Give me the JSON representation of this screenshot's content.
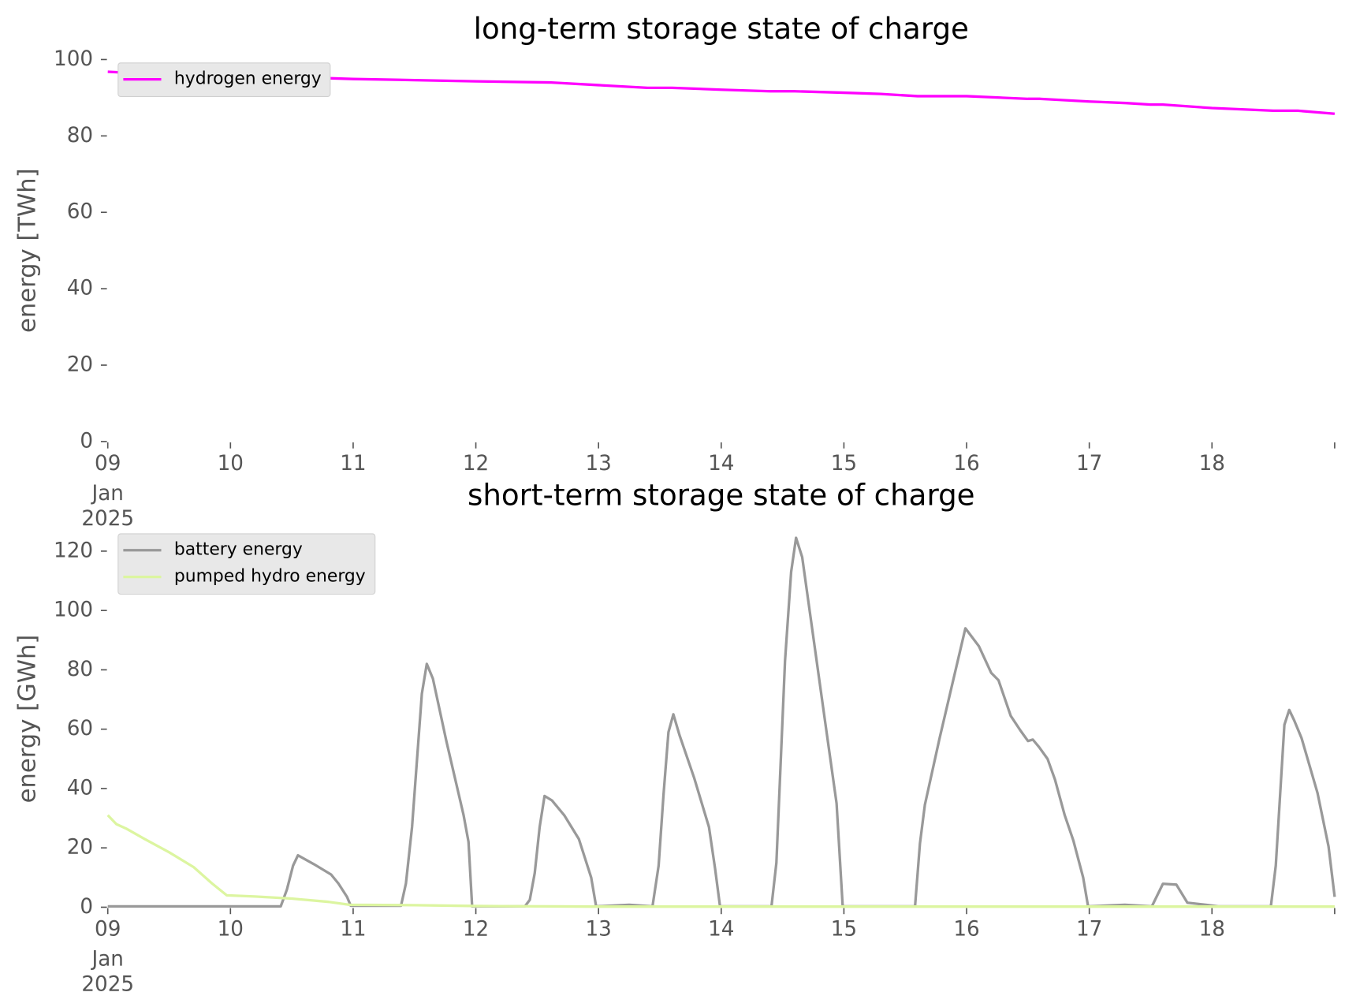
{
  "chart_data": [
    {
      "type": "line",
      "title": "long-term storage state of charge",
      "ylabel": "energy [TWh]",
      "xlim": [
        9,
        19
      ],
      "xticks": [
        {
          "value": 9,
          "label": "09"
        },
        10,
        11,
        12,
        13,
        14,
        15,
        16,
        17,
        18,
        {
          "value": 19
        }
      ],
      "x_sublabels": [
        "Jan",
        "2025"
      ],
      "ylim": [
        0,
        100
      ],
      "yticks": [
        0,
        20,
        40,
        60,
        80,
        100
      ],
      "grid": false,
      "legend": "upper left",
      "series": [
        {
          "name": "hydrogen energy",
          "color": "#ff00ff",
          "x": [
            9,
            9.5,
            10,
            10.8,
            11,
            11.5,
            12,
            12.6,
            13,
            13.4,
            13.6,
            14,
            14.4,
            14.6,
            15,
            15.3,
            15.6,
            16,
            16.5,
            16.6,
            17,
            17.3,
            17.5,
            17.6,
            18,
            18.5,
            18.7,
            19
          ],
          "values": [
            96.8,
            96,
            95.7,
            95.1,
            94.9,
            94.6,
            94.3,
            94,
            93.3,
            92.6,
            92.6,
            92.1,
            91.7,
            91.7,
            91.3,
            91,
            90.4,
            90.4,
            89.7,
            89.7,
            89,
            88.6,
            88.2,
            88.2,
            87.3,
            86.6,
            86.6,
            85.8
          ]
        }
      ]
    },
    {
      "type": "line",
      "title": "short-term storage state of charge",
      "ylabel": "energy [GWh]",
      "xlim": [
        9,
        19
      ],
      "xticks": [
        {
          "value": 9,
          "label": "09"
        },
        10,
        11,
        12,
        13,
        14,
        15,
        16,
        17,
        18,
        {
          "value": 19
        }
      ],
      "x_sublabels": [
        "Jan",
        "2025"
      ],
      "ylim": [
        0,
        127
      ],
      "yticks": [
        0,
        20,
        40,
        60,
        80,
        100,
        120
      ],
      "grid": false,
      "legend": "upper left",
      "series": [
        {
          "name": "battery energy",
          "color": "#999999",
          "x": [
            9,
            10.41,
            10.46,
            10.51,
            10.55,
            10.68,
            10.82,
            10.88,
            10.95,
            10.98,
            11.39,
            11.43,
            11.48,
            11.56,
            11.6,
            11.65,
            11.76,
            11.9,
            11.94,
            11.97,
            12.4,
            12.44,
            12.48,
            12.52,
            12.56,
            12.62,
            12.72,
            12.84,
            12.94,
            12.98,
            13.25,
            13.44,
            13.49,
            13.53,
            13.57,
            13.61,
            13.66,
            13.78,
            13.9,
            13.95,
            13.99,
            14.41,
            14.45,
            14.52,
            14.57,
            14.61,
            14.66,
            14.85,
            14.94,
            14.99,
            15.58,
            15.62,
            15.66,
            15.78,
            15.99,
            16.1,
            16.2,
            16.26,
            16.36,
            16.44,
            16.5,
            16.54,
            16.59,
            16.66,
            16.72,
            16.8,
            16.87,
            16.95,
            16.99,
            17.29,
            17.51,
            17.6,
            17.71,
            17.8,
            17.95,
            18.05,
            18.48,
            18.52,
            18.59,
            18.63,
            18.67,
            18.73,
            18.86,
            18.95,
            19
          ],
          "values": [
            0.3,
            0.3,
            6,
            14,
            17.5,
            14.5,
            11,
            8,
            3.5,
            0.5,
            0.5,
            8,
            27,
            72,
            82,
            77,
            56,
            31,
            22,
            0.3,
            0.3,
            2.5,
            11.5,
            27,
            37.5,
            36,
            31,
            23,
            10,
            0.3,
            0.8,
            0.3,
            14,
            38,
            59,
            65,
            58,
            43.5,
            27,
            13,
            0.3,
            0.3,
            15,
            83,
            113,
            124.5,
            118,
            61.5,
            35,
            0.3,
            0.3,
            21.5,
            34.5,
            57,
            94,
            88,
            79,
            76.5,
            64.5,
            59.5,
            56,
            56.5,
            54,
            50,
            43,
            31,
            22.5,
            10,
            0.3,
            0.8,
            0.3,
            7.9,
            7.6,
            1.5,
            0.8,
            0.3,
            0.3,
            14,
            61.5,
            66.5,
            63,
            57,
            38.5,
            20.5,
            3.5
          ]
        },
        {
          "name": "pumped hydro energy",
          "color": "#dcf5a0",
          "x": [
            9,
            9.07,
            9.15,
            9.3,
            9.5,
            9.7,
            9.85,
            9.97,
            10.2,
            10.5,
            10.8,
            10.97,
            11.5,
            12,
            13,
            19
          ],
          "values": [
            31,
            28,
            26.5,
            23,
            18.5,
            13.5,
            8,
            4,
            3.6,
            2.9,
            1.8,
            0.8,
            0.7,
            0.4,
            0.2,
            0.2
          ]
        }
      ]
    }
  ]
}
